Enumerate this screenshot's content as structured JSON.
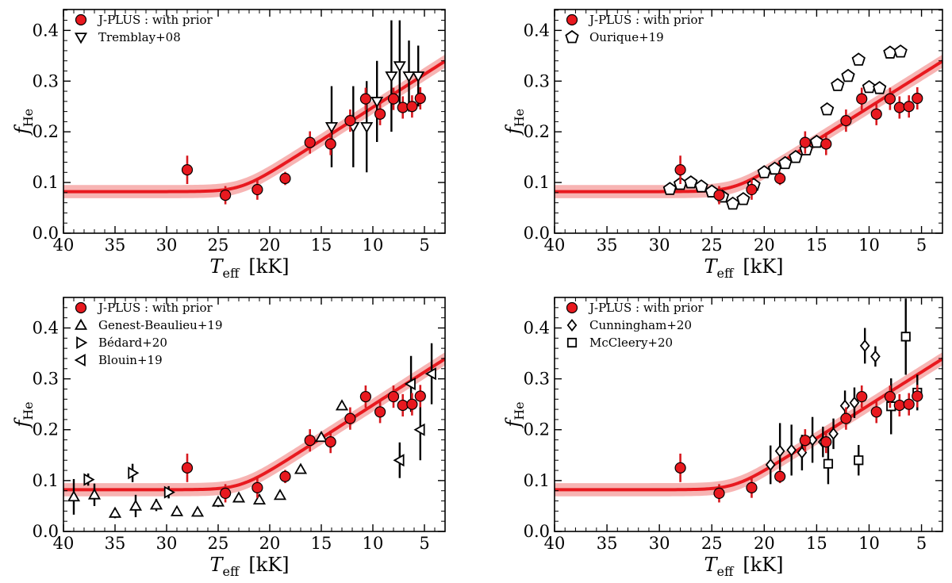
{
  "figure": {
    "prior_label": "J-PLUS : with prior",
    "model_curve": {
      "f_floor": 0.082,
      "knee_Teff": 22.8,
      "slope": 0.013,
      "band_halfwidth": 0.013
    },
    "x_label": {
      "main": "T",
      "sub": "eff",
      "unit": "[kK]"
    },
    "y_label": {
      "main": "f",
      "sub": "He"
    },
    "xlim": [
      40,
      3
    ],
    "ylim": [
      0,
      0.46
    ],
    "x_ticks": [
      40,
      35,
      30,
      25,
      20,
      15,
      10,
      5
    ],
    "y_ticks": [
      0.0,
      0.1,
      0.2,
      0.3,
      0.4
    ],
    "colors": {
      "prior": "#e8191f",
      "band": "#f7b4b3",
      "marker_edge": "#000000",
      "errbar": "#000000",
      "prior_errbar": "#d7191f"
    }
  },
  "chart_data": [
    {
      "type": "scatter",
      "panel": "top-left",
      "xlabel": "T_eff [kK]",
      "ylabel": "f_He",
      "series": [
        {
          "name": "Tremblay+08",
          "marker": "triangle-down",
          "x": [
            14.0,
            11.9,
            10.6,
            9.6,
            8.2,
            7.4,
            6.5,
            5.6
          ],
          "y": [
            0.21,
            0.21,
            0.21,
            0.26,
            0.31,
            0.33,
            0.31,
            0.31
          ],
          "err": [
            0.08,
            0.08,
            0.09,
            0.08,
            0.11,
            0.09,
            0.07,
            0.06
          ]
        }
      ]
    },
    {
      "type": "scatter",
      "panel": "top-right",
      "xlabel": "T_eff [kK]",
      "ylabel": "f_He",
      "series": [
        {
          "name": "Ourique+19",
          "marker": "pentagon",
          "x": [
            29.0,
            28.0,
            27.0,
            26.0,
            25.0,
            24.0,
            23.0,
            22.0,
            21.0,
            20.0,
            19.0,
            18.0,
            17.0,
            16.0,
            15.0,
            14.0,
            13.0,
            12.0,
            11.0,
            10.0,
            9.0,
            8.0,
            7.0
          ],
          "y": [
            0.087,
            0.097,
            0.1,
            0.092,
            0.082,
            0.072,
            0.058,
            0.067,
            0.095,
            0.12,
            0.127,
            0.138,
            0.15,
            0.165,
            0.18,
            0.244,
            0.292,
            0.31,
            0.342,
            0.288,
            0.286,
            0.356,
            0.358
          ]
        }
      ]
    },
    {
      "type": "scatter",
      "panel": "bottom-left",
      "xlabel": "T_eff [kK]",
      "ylabel": "f_He",
      "series": [
        {
          "name": "Genest-Beaulieu+19",
          "marker": "triangle-up",
          "x": [
            39.0,
            37.0,
            35.0,
            33.0,
            31.0,
            29.0,
            27.0,
            25.0,
            23.0,
            21.0,
            19.0,
            17.0,
            15.0,
            13.0
          ],
          "y": [
            0.068,
            0.072,
            0.036,
            0.05,
            0.052,
            0.039,
            0.038,
            0.058,
            0.066,
            0.062,
            0.071,
            0.122,
            0.185,
            0.247
          ],
          "err": [
            0.035,
            0.022,
            0.01,
            0.022,
            0.012,
            0.0,
            0.0,
            0.01,
            0.0,
            0.0,
            0.0,
            0.0,
            0.0,
            0.0
          ]
        },
        {
          "name": "Bédard+20",
          "marker": "triangle-right",
          "x": [
            37.6,
            33.3,
            29.8
          ],
          "y": [
            0.102,
            0.115,
            0.077
          ],
          "err": [
            0.012,
            0.018,
            0.012
          ]
        },
        {
          "name": "Blouin+19",
          "marker": "triangle-left",
          "x": [
            7.4,
            6.3,
            5.4,
            4.3
          ],
          "y": [
            0.14,
            0.29,
            0.2,
            0.31
          ],
          "err": [
            0.035,
            0.055,
            0.06,
            0.06
          ]
        }
      ]
    },
    {
      "type": "scatter",
      "panel": "bottom-right",
      "xlabel": "T_eff [kK]",
      "ylabel": "f_He",
      "series": [
        {
          "name": "Cunningham+20",
          "marker": "diamond",
          "x": [
            19.4,
            18.5,
            17.4,
            16.4,
            15.4,
            14.4,
            13.4,
            12.3,
            11.4,
            10.4,
            9.4
          ],
          "y": [
            0.131,
            0.158,
            0.16,
            0.155,
            0.18,
            0.176,
            0.192,
            0.247,
            0.253,
            0.365,
            0.344
          ],
          "err": [
            0.038,
            0.055,
            0.05,
            0.035,
            0.045,
            0.03,
            0.03,
            0.03,
            0.03,
            0.035,
            0.02
          ]
        },
        {
          "name": "McCleery+20",
          "marker": "square",
          "x": [
            13.9,
            11.0,
            7.9,
            6.5,
            5.4
          ],
          "y": [
            0.133,
            0.14,
            0.246,
            0.383,
            0.273
          ],
          "err": [
            0.04,
            0.03,
            0.055,
            0.075,
            0.035
          ]
        }
      ]
    }
  ],
  "prior_data": {
    "x": [
      28.0,
      24.3,
      21.2,
      18.5,
      16.1,
      14.1,
      12.2,
      10.7,
      9.3,
      8.0,
      7.1,
      6.2,
      5.4
    ],
    "y": [
      0.125,
      0.075,
      0.086,
      0.108,
      0.179,
      0.176,
      0.222,
      0.265,
      0.235,
      0.265,
      0.248,
      0.25,
      0.266
    ],
    "err": [
      0.028,
      0.018,
      0.02,
      0.013,
      0.022,
      0.022,
      0.022,
      0.022,
      0.022,
      0.022,
      0.022,
      0.022,
      0.022
    ]
  }
}
